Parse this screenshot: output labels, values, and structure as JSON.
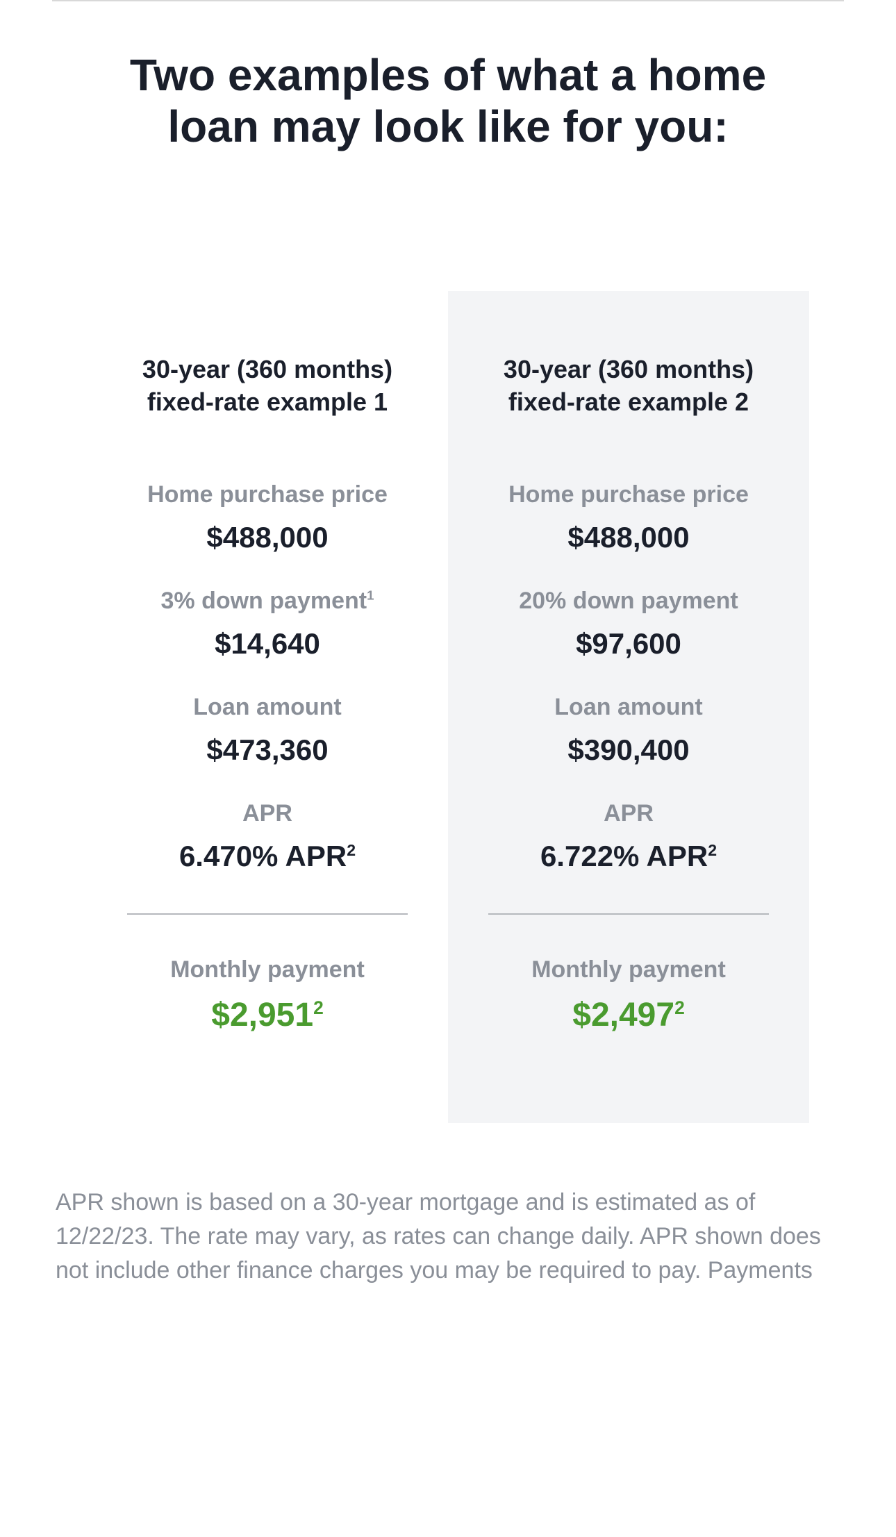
{
  "heading": "Two examples of what a home loan may look like for you:",
  "columns": [
    {
      "shaded": false,
      "title": "30-year (360 months) fixed-rate example 1",
      "rows_top": [
        {
          "label": "Home purchase price",
          "label_sup": "",
          "value": "$488,000",
          "value_sup": ""
        },
        {
          "label": "3% down payment",
          "label_sup": "1",
          "value": "$14,640",
          "value_sup": ""
        },
        {
          "label": "Loan amount",
          "label_sup": "",
          "value": "$473,360",
          "value_sup": ""
        },
        {
          "label": "APR",
          "label_sup": "",
          "value": "6.470% APR",
          "value_sup": "2"
        }
      ],
      "rows_bottom": [
        {
          "label": "Monthly payment",
          "label_sup": "",
          "value": "$2,951",
          "value_sup": "2",
          "green": true
        }
      ]
    },
    {
      "shaded": true,
      "title": "30-year (360 months) fixed-rate example 2",
      "rows_top": [
        {
          "label": "Home purchase price",
          "label_sup": "",
          "value": "$488,000",
          "value_sup": ""
        },
        {
          "label": "20% down payment",
          "label_sup": "",
          "value": "$97,600",
          "value_sup": ""
        },
        {
          "label": "Loan amount",
          "label_sup": "",
          "value": "$390,400",
          "value_sup": ""
        },
        {
          "label": "APR",
          "label_sup": "",
          "value": "6.722% APR",
          "value_sup": "2"
        }
      ],
      "rows_bottom": [
        {
          "label": "Monthly payment",
          "label_sup": "",
          "value": "$2,497",
          "value_sup": "2",
          "green": true
        }
      ]
    }
  ],
  "disclaimer": "APR shown is based on a 30-year mortgage and is estimated as of 12/22/23. The rate may vary, as rates can change daily. APR shown does not include other finance charges you may be required to pay. Payments",
  "colors": {
    "heading": "#1a1f2b",
    "label": "#8a8f98",
    "value": "#1a1f2b",
    "green": "#4a9b2f",
    "shaded_bg": "#f3f4f6",
    "rule": "#d8d8d8",
    "divider": "#b5b8bd",
    "background": "#ffffff"
  },
  "typography": {
    "heading_fontsize": 64,
    "card_title_fontsize": 36,
    "label_fontsize": 34,
    "value_fontsize": 42,
    "green_value_fontsize": 48,
    "disclaimer_fontsize": 34
  }
}
